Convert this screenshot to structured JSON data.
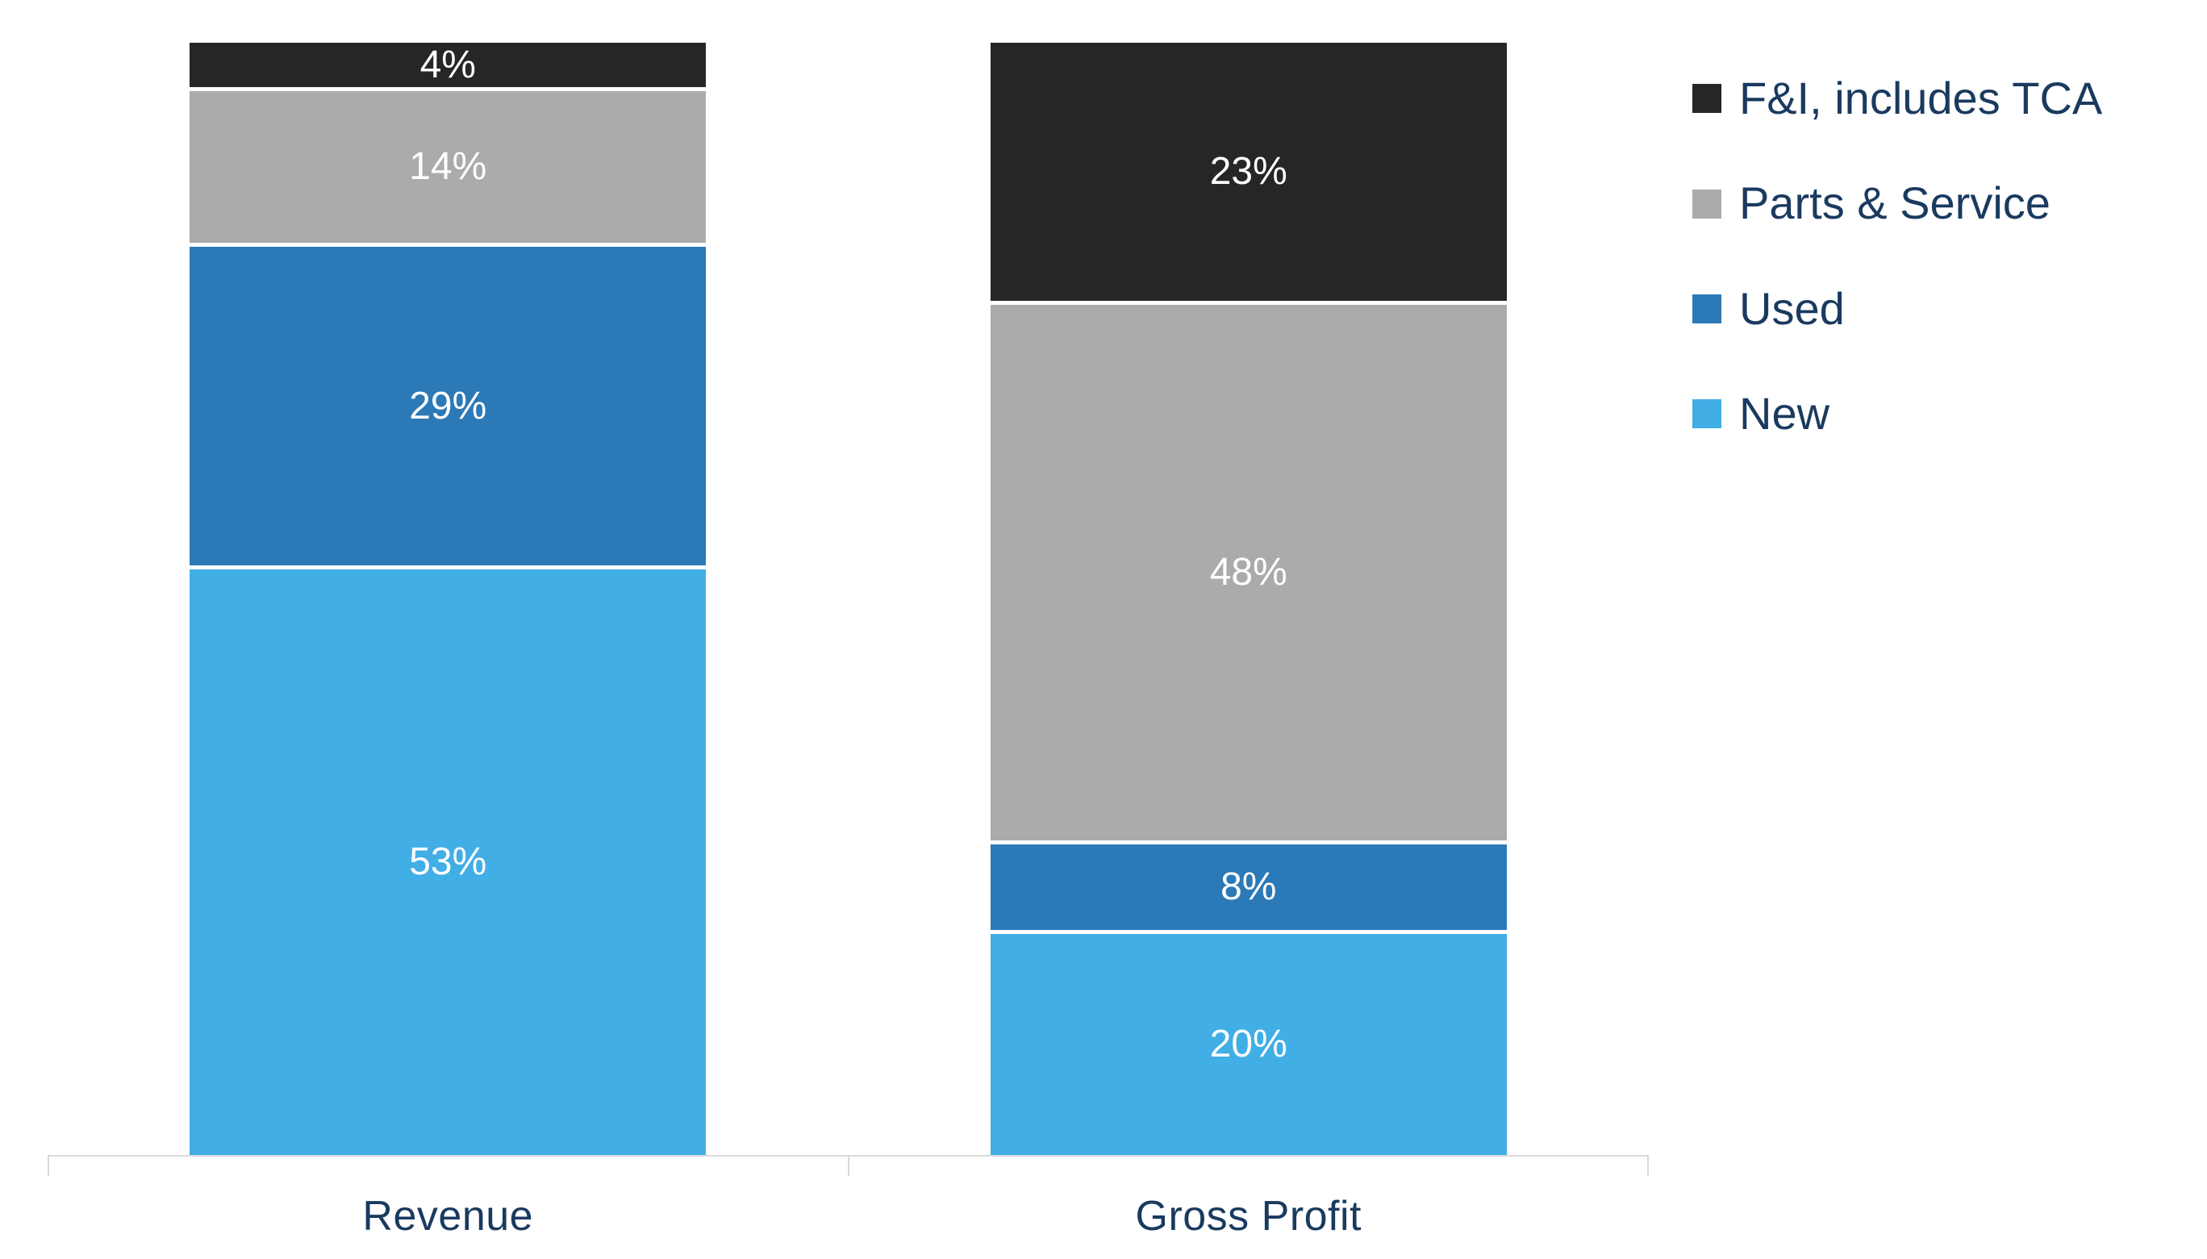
{
  "chart_data": {
    "type": "bar",
    "variant": "stacked-100-percent",
    "title": "",
    "xlabel": "",
    "ylabel": "",
    "ylim": [
      0,
      100
    ],
    "grid": false,
    "categories": [
      "Revenue",
      "Gross Profit"
    ],
    "series": [
      {
        "name": "New",
        "color": "#41AEE5",
        "values": [
          53,
          20
        ]
      },
      {
        "name": "Used",
        "color": "#2B79B7",
        "values": [
          29,
          8
        ]
      },
      {
        "name": "Parts & Service",
        "color": "#ABABAB",
        "values": [
          14,
          48
        ]
      },
      {
        "name": "F&I, includes TCA",
        "color": "#262626",
        "values": [
          4,
          23
        ]
      }
    ],
    "value_label_suffix": "%",
    "legend": {
      "position": "right",
      "items": [
        {
          "label": "F&I, includes TCA",
          "color": "#262626"
        },
        {
          "label": "Parts & Service",
          "color": "#ABABAB"
        },
        {
          "label": "Used",
          "color": "#2B79B7"
        },
        {
          "label": "New",
          "color": "#41AEE5"
        }
      ]
    },
    "colors": {
      "background": "#FFFFFF",
      "axis_line": "#D9D9D9",
      "category_label": "#1A3A5F",
      "value_label": "#FFFFFF",
      "segment_gap": "#FFFFFF"
    }
  }
}
